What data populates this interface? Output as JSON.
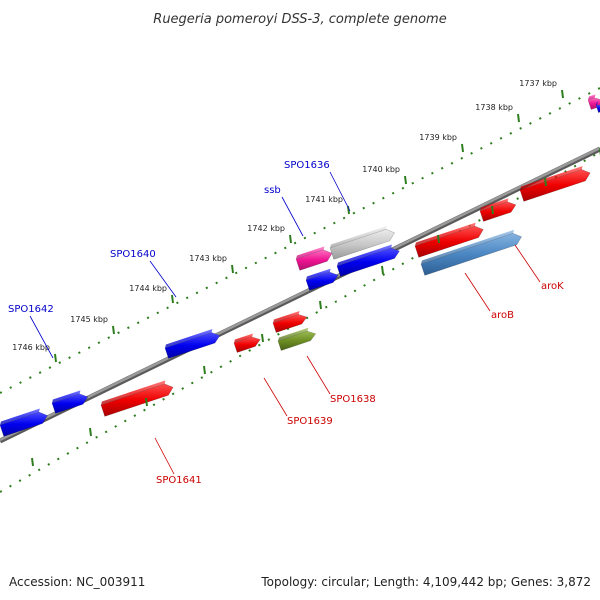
{
  "title": "Ruegeria pomeroyi DSS-3, complete genome",
  "footer": {
    "accession": "Accession: NC_003911",
    "topology": "Topology: circular; Length: 4,109,442 bp; Genes: 3,872"
  },
  "colors": {
    "backbone": "#808080",
    "dots": "#2e7d1e",
    "blue_gene": "#0000ee",
    "red_gene": "#ee0000",
    "pink_gene": "#ee1493",
    "grey_gene": "#c8c8c8",
    "steel_gene": "#4a86c2",
    "olive_gene": "#6b8e23",
    "forward_label": "#0000cc",
    "reverse_label": "#cc0000"
  },
  "ticks": [
    {
      "label": "1737 kbp"
    },
    {
      "label": "1738 kbp"
    },
    {
      "label": "1739 kbp"
    },
    {
      "label": "1740 kbp"
    },
    {
      "label": "1741 kbp"
    },
    {
      "label": "1742 kbp"
    },
    {
      "label": "1743 kbp"
    },
    {
      "label": "1744 kbp"
    },
    {
      "label": "1745 kbp"
    },
    {
      "label": "1746 kbp"
    }
  ],
  "forward_genes": [
    {
      "name": "SPO1636",
      "color": "grey_gene"
    },
    {
      "name": "ssb",
      "color": "pink_gene"
    },
    {
      "name": "SPO1640",
      "color": "blue_gene"
    },
    {
      "name": "SPO1642",
      "color": "blue_gene"
    }
  ],
  "reverse_genes": [
    {
      "name": "aroK",
      "color": "red_gene"
    },
    {
      "name": "aroB",
      "color": "steel_gene"
    },
    {
      "name": "SPO1638",
      "color": "olive_gene"
    },
    {
      "name": "SPO1639",
      "color": "red_gene"
    },
    {
      "name": "SPO1641",
      "color": "red_gene"
    }
  ]
}
